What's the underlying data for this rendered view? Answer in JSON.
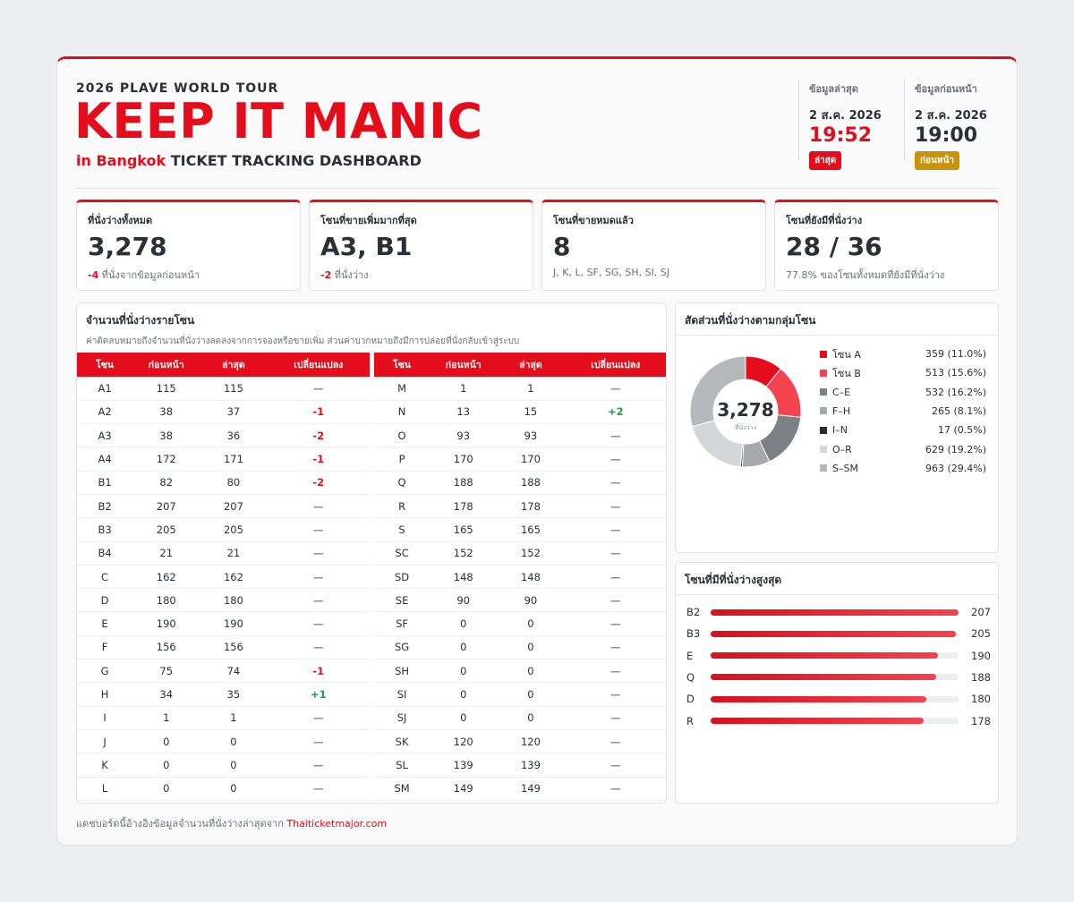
{
  "header": {
    "subtitle": "2026 PLAVE WORLD TOUR",
    "title": "KEEP IT MANIC",
    "city": "in Bangkok",
    "dashboard": "TICKET TRACKING DASHBOARD"
  },
  "latest": {
    "label": "ข้อมูลล่าสุด",
    "date": "2 ส.ค. 2026",
    "time": "19:52",
    "badge": "ล่าสุด",
    "badge_color": "#e30d1b",
    "time_color": "#e30d1b"
  },
  "previous": {
    "label": "ข้อมูลก่อนหน้า",
    "date": "2 ส.ค. 2026",
    "time": "19:00",
    "badge": "ก่อนหน้า",
    "badge_color": "#c9940a",
    "time_color": "#2b2f36"
  },
  "stats": [
    {
      "label": "ที่นั่งว่างทั้งหมด",
      "value": "3,278",
      "delta": "-4",
      "note": "ที่นั่งจากข้อมูลก่อนหน้า"
    },
    {
      "label": "โซนที่ขายเพิ่มมากที่สุด",
      "value": "A3, B1",
      "delta": "-2",
      "note": "ที่นั่งว่าง"
    },
    {
      "label": "โซนที่ขายหมดแล้ว",
      "value": "8",
      "delta": "",
      "note": "J, K, L, SF, SG, SH, SI, SJ"
    },
    {
      "label": "โซนที่ยังมีที่นั่งว่าง",
      "value": "28 / 36",
      "delta": "",
      "note": "77.8% ของโซนทั้งหมดที่ยังมีที่นั่งว่าง"
    }
  ],
  "zone_table": {
    "title": "จำนวนที่นั่งว่างรายโซน",
    "description": "ค่าติดลบหมายถึงจำนวนที่นั่งว่างลดลงจากการจองหรือขายเพิ่ม ส่วนค่าบวกหมายถึงมีการปล่อยที่นั่งกลับเข้าสู่ระบบ",
    "headers": [
      "โซน",
      "ก่อนหน้า",
      "ล่าสุด",
      "เปลี่ยนแปลง"
    ],
    "left_rows": [
      [
        "A1",
        "115",
        "115",
        "—"
      ],
      [
        "A2",
        "38",
        "37",
        "-1"
      ],
      [
        "A3",
        "38",
        "36",
        "-2"
      ],
      [
        "A4",
        "172",
        "171",
        "-1"
      ],
      [
        "B1",
        "82",
        "80",
        "-2"
      ],
      [
        "B2",
        "207",
        "207",
        "—"
      ],
      [
        "B3",
        "205",
        "205",
        "—"
      ],
      [
        "B4",
        "21",
        "21",
        "—"
      ],
      [
        "C",
        "162",
        "162",
        "—"
      ],
      [
        "D",
        "180",
        "180",
        "—"
      ],
      [
        "E",
        "190",
        "190",
        "—"
      ],
      [
        "F",
        "156",
        "156",
        "—"
      ],
      [
        "G",
        "75",
        "74",
        "-1"
      ],
      [
        "H",
        "34",
        "35",
        "+1"
      ],
      [
        "I",
        "1",
        "1",
        "—"
      ],
      [
        "J",
        "0",
        "0",
        "—"
      ],
      [
        "K",
        "0",
        "0",
        "—"
      ],
      [
        "L",
        "0",
        "0",
        "—"
      ]
    ],
    "right_rows": [
      [
        "M",
        "1",
        "1",
        "—"
      ],
      [
        "N",
        "13",
        "15",
        "+2"
      ],
      [
        "O",
        "93",
        "93",
        "—"
      ],
      [
        "P",
        "170",
        "170",
        "—"
      ],
      [
        "Q",
        "188",
        "188",
        "—"
      ],
      [
        "R",
        "178",
        "178",
        "—"
      ],
      [
        "S",
        "165",
        "165",
        "—"
      ],
      [
        "SC",
        "152",
        "152",
        "—"
      ],
      [
        "SD",
        "148",
        "148",
        "—"
      ],
      [
        "SE",
        "90",
        "90",
        "—"
      ],
      [
        "SF",
        "0",
        "0",
        "—"
      ],
      [
        "SG",
        "0",
        "0",
        "—"
      ],
      [
        "SH",
        "0",
        "0",
        "—"
      ],
      [
        "SI",
        "0",
        "0",
        "—"
      ],
      [
        "SJ",
        "0",
        "0",
        "—"
      ],
      [
        "SK",
        "120",
        "120",
        "—"
      ],
      [
        "SL",
        "139",
        "139",
        "—"
      ],
      [
        "SM",
        "149",
        "149",
        "—"
      ]
    ]
  },
  "donut": {
    "title": "สัดส่วนที่นั่งว่างตามกลุ่มโซน",
    "center_value": "3,278",
    "center_label": "ที่นั่งว่าง"
  },
  "top_zones": {
    "title": "โซนที่มีที่นั่งว่างสูงสุด"
  },
  "chart_data": [
    {
      "type": "pie",
      "categories": [
        "โซน A",
        "โซน B",
        "C–E",
        "F–H",
        "I–N",
        "O–R",
        "S–SM"
      ],
      "values": [
        359,
        513,
        532,
        265,
        17,
        629,
        963
      ],
      "labels": [
        "359 (11.0%)",
        "513 (15.6%)",
        "532 (16.2%)",
        "265 (8.1%)",
        "17 (0.5%)",
        "629 (19.2%)",
        "963 (29.4%)"
      ],
      "colors": [
        "#e30d1b",
        "#f2434f",
        "#7d8085",
        "#a5a8ad",
        "#2b2d30",
        "#d4d6d9",
        "#b5b7bb"
      ],
      "legend": "right"
    },
    {
      "type": "bar",
      "orientation": "horizontal",
      "categories": [
        "B2",
        "B3",
        "E",
        "Q",
        "D",
        "R"
      ],
      "values": [
        207,
        205,
        190,
        188,
        180,
        178
      ],
      "xlim": [
        0,
        207
      ]
    }
  ],
  "footer": {
    "text": "แดชบอร์ดนี้อ้างอิงข้อมูลจำนวนที่นั่งว่างล่าสุดจาก",
    "link": "Thaiticketmajor.com"
  }
}
